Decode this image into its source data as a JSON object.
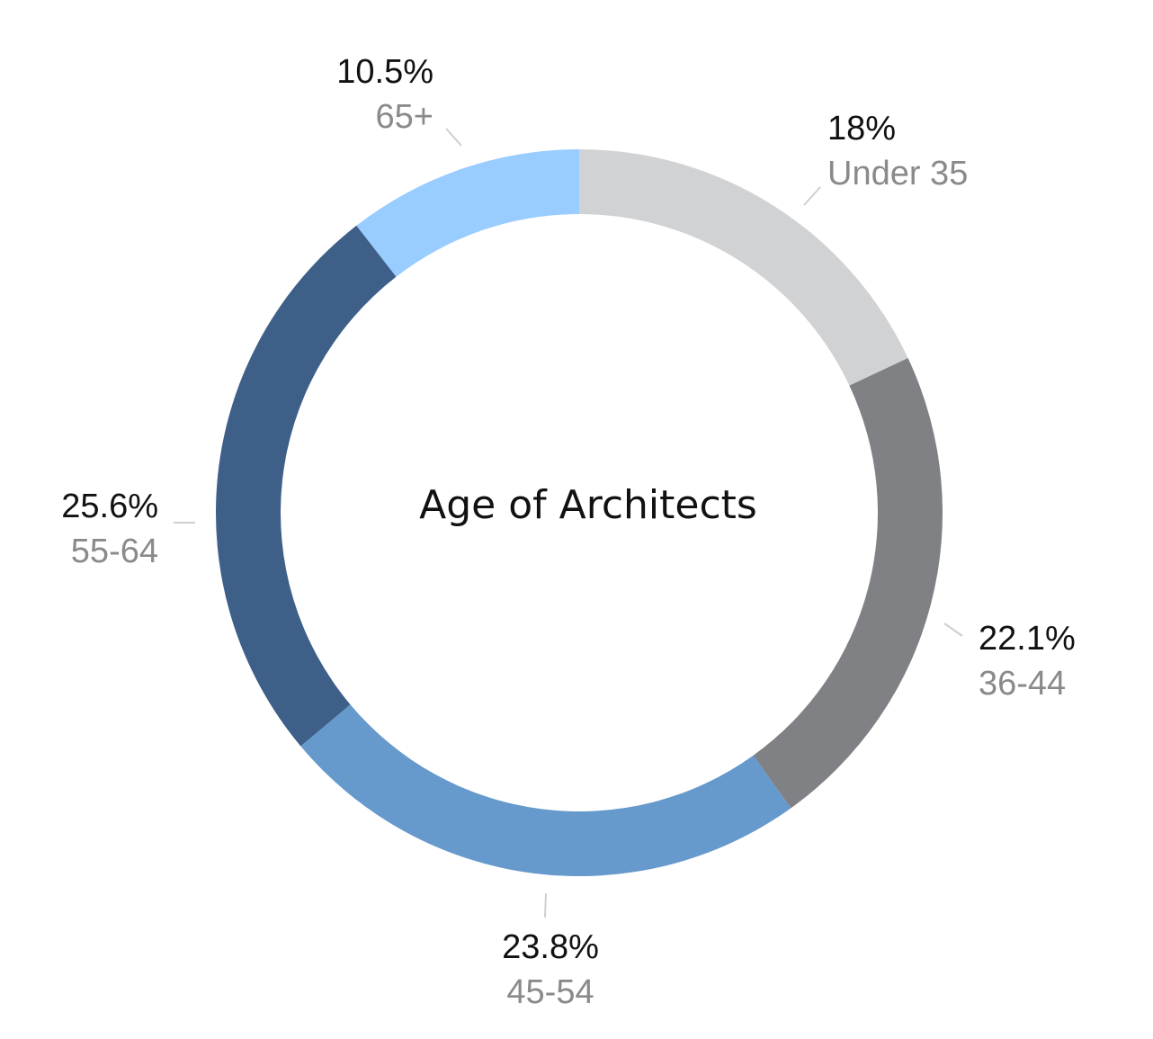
{
  "chart_data": {
    "type": "pie",
    "variant": "donut",
    "title": "Age of Architects",
    "slices": [
      {
        "label": "Under 35",
        "value": 18,
        "value_label": "18%",
        "color": "#d1d2d4"
      },
      {
        "label": "36-44",
        "value": 22.1,
        "value_label": "22.1%",
        "color": "#808184"
      },
      {
        "label": "45-54",
        "value": 23.8,
        "value_label": "23.8%",
        "color": "#6699cc"
      },
      {
        "label": "55-64",
        "value": 25.6,
        "value_label": "25.6%",
        "color": "#3d5f88"
      },
      {
        "label": "65+",
        "value": 10.5,
        "value_label": "10.5%",
        "color": "#99ccff"
      }
    ],
    "start_angle_deg": 0,
    "direction": "clockwise",
    "legend": "none"
  }
}
